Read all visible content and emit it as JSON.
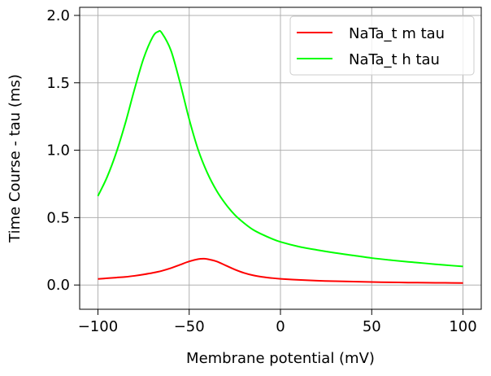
{
  "chart_data": {
    "type": "line",
    "title": "",
    "xlabel": "Membrane potential (mV)",
    "ylabel": "Time Course - tau (ms)",
    "xlim": [
      -110,
      110
    ],
    "ylim": [
      -0.18,
      2.06
    ],
    "xticks": [
      -100,
      -50,
      0,
      50,
      100
    ],
    "xtick_labels": [
      "−100",
      "−50",
      "0",
      "50",
      "100"
    ],
    "yticks": [
      0.0,
      0.5,
      1.0,
      1.5,
      2.0
    ],
    "ytick_labels": [
      "0.0",
      "0.5",
      "1.0",
      "1.5",
      "2.0"
    ],
    "grid": true,
    "legend_position": "top-right",
    "series": [
      {
        "name": "NaTa_t m tau",
        "color": "#ff0000",
        "x": [
          -100,
          -95,
          -90,
          -85,
          -80,
          -75,
          -70,
          -65,
          -60,
          -55,
          -50,
          -45,
          -42,
          -40,
          -35,
          -30,
          -25,
          -20,
          -15,
          -10,
          -5,
          0,
          10,
          20,
          30,
          40,
          50,
          60,
          70,
          80,
          90,
          100
        ],
        "y": [
          0.045,
          0.05,
          0.055,
          0.06,
          0.068,
          0.078,
          0.09,
          0.105,
          0.125,
          0.15,
          0.175,
          0.192,
          0.195,
          0.192,
          0.175,
          0.145,
          0.115,
          0.09,
          0.072,
          0.06,
          0.052,
          0.046,
          0.038,
          0.032,
          0.028,
          0.025,
          0.022,
          0.02,
          0.018,
          0.017,
          0.016,
          0.015
        ]
      },
      {
        "name": "NaTa_t h tau",
        "color": "#00ff00",
        "x": [
          -100,
          -95,
          -90,
          -85,
          -80,
          -75,
          -70,
          -67,
          -65,
          -60,
          -55,
          -50,
          -45,
          -40,
          -35,
          -30,
          -25,
          -20,
          -15,
          -10,
          -5,
          0,
          10,
          20,
          30,
          40,
          50,
          60,
          70,
          80,
          90,
          100
        ],
        "y": [
          0.66,
          0.8,
          0.98,
          1.2,
          1.45,
          1.68,
          1.84,
          1.88,
          1.87,
          1.74,
          1.5,
          1.23,
          1.0,
          0.83,
          0.7,
          0.6,
          0.52,
          0.46,
          0.41,
          0.375,
          0.345,
          0.32,
          0.285,
          0.26,
          0.238,
          0.219,
          0.2,
          0.185,
          0.172,
          0.16,
          0.148,
          0.138
        ]
      }
    ]
  }
}
